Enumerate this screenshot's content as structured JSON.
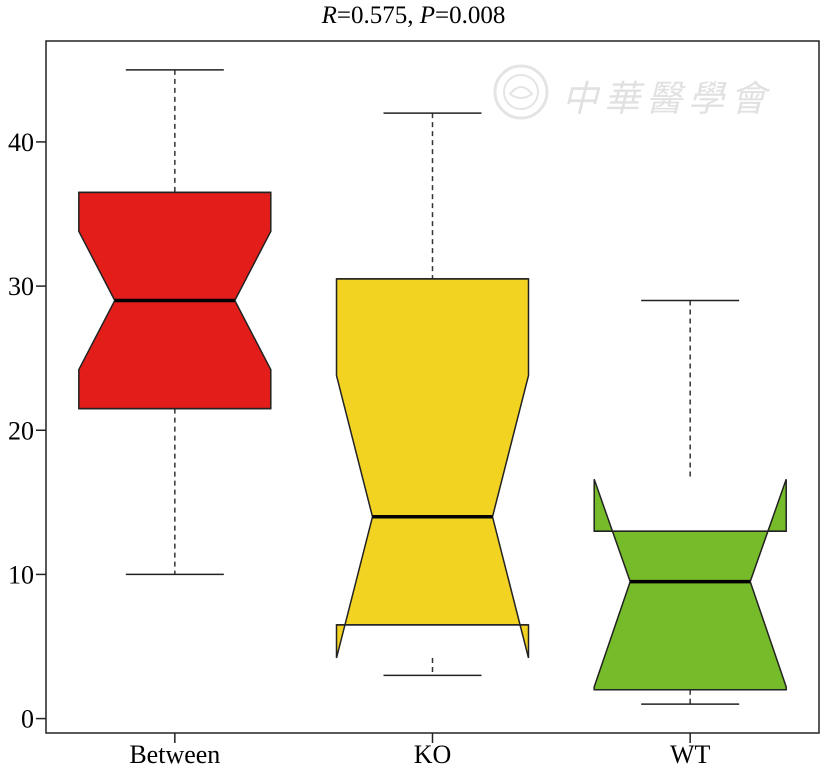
{
  "title": {
    "r_label": "R",
    "r_rest": "=0.575, ",
    "p_label": "P",
    "p_rest": "=0.008"
  },
  "watermark": {
    "text": "中華醫學會"
  },
  "chart_data": {
    "type": "boxplot",
    "notched": true,
    "categories": [
      "Between",
      "KO",
      "WT"
    ],
    "ylim": [
      -1,
      47
    ],
    "yticks": [
      0,
      10,
      20,
      30,
      40
    ],
    "grid": false,
    "boxes": [
      {
        "name": "Between",
        "whisker_low": 10,
        "q1": 21.5,
        "median": 29,
        "q3": 36.5,
        "whisker_high": 45,
        "notch_low": 24.2,
        "notch_high": 33.8,
        "color": "#e31e1a"
      },
      {
        "name": "KO",
        "whisker_low": 3,
        "q1": 6.5,
        "median": 14,
        "q3": 30.5,
        "whisker_high": 42,
        "notch_low": 4.2,
        "notch_high": 23.8,
        "color": "#f2d322"
      },
      {
        "name": "WT",
        "whisker_low": 1,
        "q1": 2,
        "median": 9.5,
        "q3": 13,
        "whisker_high": 29,
        "notch_low": 2.2,
        "notch_high": 16.6,
        "color": "#76bb2a"
      }
    ]
  }
}
